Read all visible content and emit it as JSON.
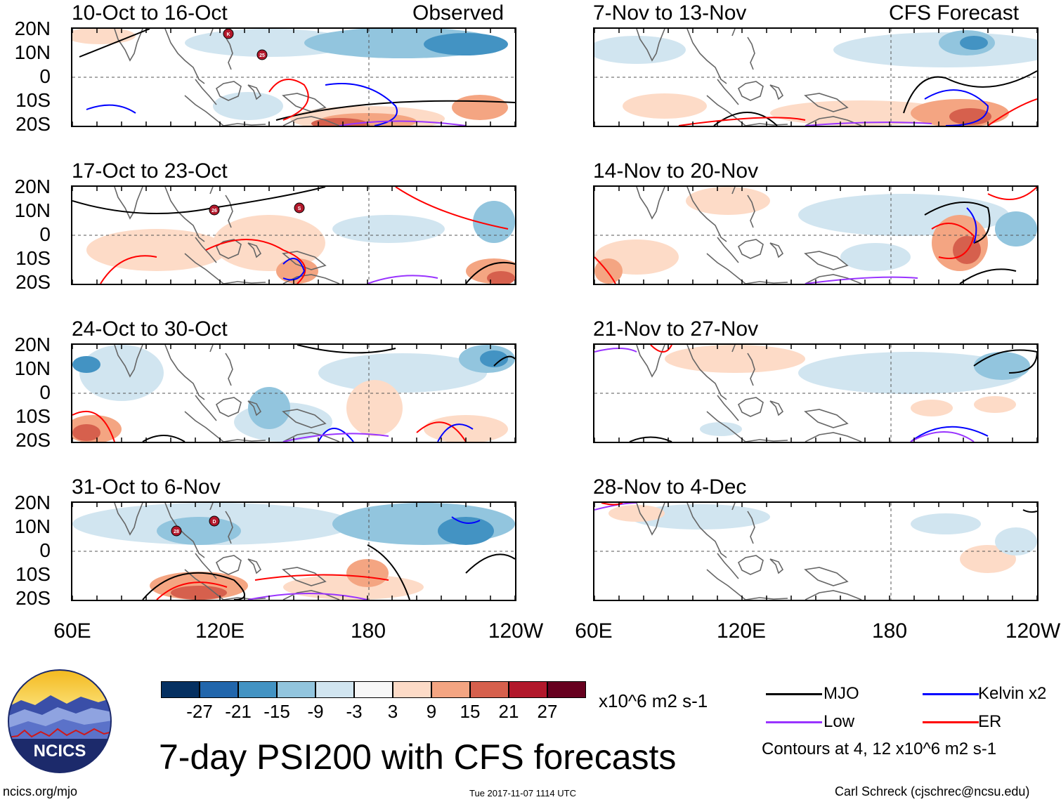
{
  "figure": {
    "title": "7-day PSI200 with CFS forecasts",
    "units": "x10^6 m2 s-1",
    "timestamp": "Tue 2017-11-07 1114 UTC",
    "site": "ncics.org/mjo",
    "author": "Carl Schreck (cjschrec@ncsu.edu)",
    "logo_text": "NCICS"
  },
  "columns": {
    "observed_label": "Observed",
    "forecast_label": "CFS Forecast"
  },
  "panels": [
    {
      "title": "10-Oct to 16-Oct",
      "kind": "observed"
    },
    {
      "title": "17-Oct to 23-Oct",
      "kind": "observed"
    },
    {
      "title": "24-Oct to 30-Oct",
      "kind": "observed"
    },
    {
      "title": "31-Oct to 6-Nov",
      "kind": "observed"
    },
    {
      "title": "7-Nov to 13-Nov",
      "kind": "forecast"
    },
    {
      "title": "14-Nov to 20-Nov",
      "kind": "forecast"
    },
    {
      "title": "21-Nov to 27-Nov",
      "kind": "forecast"
    },
    {
      "title": "28-Nov to 4-Dec",
      "kind": "forecast"
    }
  ],
  "axes": {
    "lat_labels": [
      "20N",
      "10N",
      "0",
      "10S",
      "20S"
    ],
    "lon_labels": [
      "60E",
      "120E",
      "180",
      "120W"
    ]
  },
  "colorbar": {
    "colors": [
      "#053061",
      "#2166ac",
      "#4393c3",
      "#92c5de",
      "#d1e5f0",
      "#f7f7f7",
      "#fddbc7",
      "#f4a582",
      "#d6604d",
      "#b2182b",
      "#67001f"
    ],
    "labels": [
      "-27",
      "-21",
      "-15",
      "-9",
      "-3",
      "3",
      "9",
      "15",
      "21",
      "27"
    ]
  },
  "legend": {
    "items": [
      {
        "label": "MJO",
        "color": "#000000"
      },
      {
        "label": "Kelvin x2",
        "color": "#0000ff"
      },
      {
        "label": "Low",
        "color": "#9933ff"
      },
      {
        "label": "ER",
        "color": "#ff0000"
      }
    ],
    "note": "Contours at 4, 12 x10^6 m2 s-1"
  },
  "storm_markers": [
    {
      "panel": 0,
      "label": "K"
    },
    {
      "panel": 0,
      "label": "25"
    },
    {
      "panel": 1,
      "label": "26"
    },
    {
      "panel": 1,
      "label": "S"
    },
    {
      "panel": 3,
      "label": "28"
    },
    {
      "panel": 3,
      "label": "D"
    }
  ]
}
